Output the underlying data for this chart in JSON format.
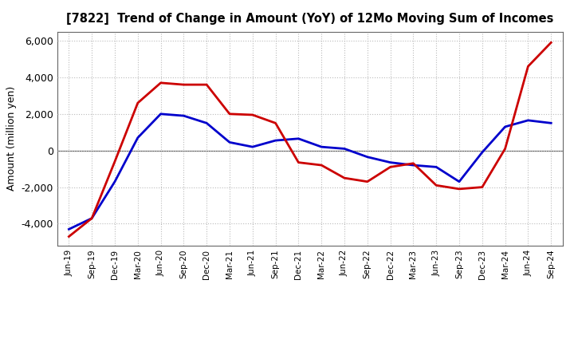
{
  "title": "[7822]  Trend of Change in Amount (YoY) of 12Mo Moving Sum of Incomes",
  "ylabel": "Amount (million yen)",
  "ylim": [
    -5200,
    6500
  ],
  "yticks": [
    -4000,
    -2000,
    0,
    2000,
    4000,
    6000
  ],
  "background_color": "#ffffff",
  "grid_color": "#bbbbbb",
  "ordinary_income_color": "#0000cc",
  "net_income_color": "#cc0000",
  "line_width": 2.0,
  "labels": [
    "Jun-19",
    "Sep-19",
    "Dec-19",
    "Mar-20",
    "Jun-20",
    "Sep-20",
    "Dec-20",
    "Mar-21",
    "Jun-21",
    "Sep-21",
    "Dec-21",
    "Mar-22",
    "Jun-22",
    "Sep-22",
    "Dec-22",
    "Mar-23",
    "Jun-23",
    "Sep-23",
    "Dec-23",
    "Mar-24",
    "Jun-24",
    "Sep-24"
  ],
  "ordinary_income": [
    -4300,
    -3700,
    -1700,
    700,
    2000,
    1900,
    1500,
    450,
    200,
    550,
    650,
    200,
    100,
    -350,
    -650,
    -800,
    -900,
    -1700,
    -100,
    1300,
    1650,
    1500
  ],
  "net_income": [
    -4700,
    -3700,
    -600,
    2600,
    3700,
    3600,
    3600,
    2000,
    1950,
    1500,
    -650,
    -800,
    -1500,
    -1700,
    -900,
    -700,
    -1900,
    -2100,
    -2000,
    100,
    4600,
    5900
  ]
}
